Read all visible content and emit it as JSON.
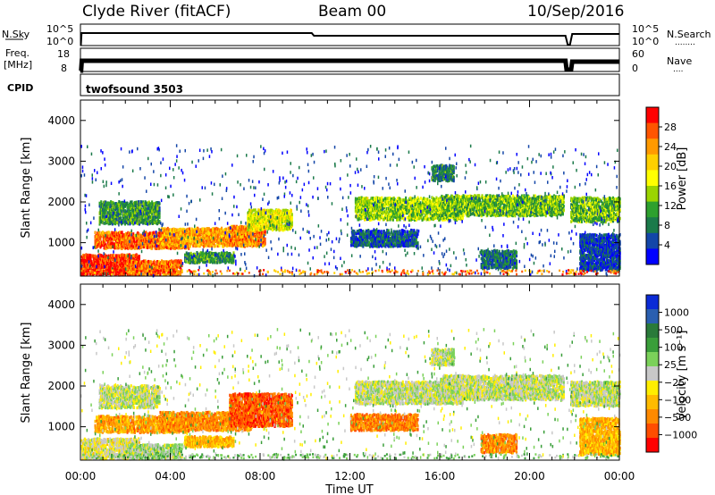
{
  "header": {
    "station": "Clyde River (fitACF)",
    "beam": "Beam 00",
    "date": "10/Sep/2016"
  },
  "nsky_panel": {
    "left_label": "N.Sky",
    "left_ticks": [
      "10^5",
      "10^0"
    ],
    "right_ticks": [
      "10^5",
      "10^0"
    ],
    "right_label": "N.Search",
    "right_dots": "........"
  },
  "freq_panel": {
    "left_label_1": "Freq.",
    "left_label_2": "[MHz]",
    "left_ticks": [
      "18",
      "8"
    ],
    "right_ticks": [
      "60",
      "0"
    ],
    "right_label": "Nave",
    "right_dots": "...."
  },
  "cpid_panel": {
    "label": "CPID",
    "value": "twofsound 3503"
  },
  "chart_data": [
    {
      "type": "heatmap",
      "name": "power",
      "ylabel": "Slant Range [km]",
      "xlabel": "",
      "ylim": [
        180,
        4500
      ],
      "yticks": [
        1000,
        2000,
        3000,
        4000
      ],
      "xlim": [
        0,
        24
      ],
      "colorbar": {
        "label": "Power [dB]",
        "ticks": [
          "28",
          "24",
          "20",
          "16",
          "12",
          "8",
          "4"
        ],
        "colors": [
          "#ff0000",
          "#ff5500",
          "#ff9a00",
          "#ffd000",
          "#ffff00",
          "#9bd400",
          "#2ea02e",
          "#1b7a4a",
          "#1346a8",
          "#0000ff"
        ]
      },
      "regions": [
        {
          "t": [
            0.0,
            2.6
          ],
          "r": [
            200,
            700
          ],
          "level": 0.95
        },
        {
          "t": [
            0.6,
            4.8
          ],
          "r": [
            850,
            1250
          ],
          "level": 0.85
        },
        {
          "t": [
            2.0,
            4.5
          ],
          "r": [
            200,
            550
          ],
          "level": 0.85
        },
        {
          "t": [
            3.5,
            7.6
          ],
          "r": [
            900,
            1350
          ],
          "level": 0.75
        },
        {
          "t": [
            6.6,
            8.2
          ],
          "r": [
            900,
            1400
          ],
          "level": 0.8
        },
        {
          "t": [
            7.4,
            9.4
          ],
          "r": [
            1300,
            1800
          ],
          "level": 0.55
        },
        {
          "t": [
            0.8,
            3.5
          ],
          "r": [
            1450,
            2000
          ],
          "level": 0.3
        },
        {
          "t": [
            4.6,
            6.8
          ],
          "r": [
            500,
            750
          ],
          "level": 0.3
        },
        {
          "t": [
            12.2,
            17.0
          ],
          "r": [
            1550,
            2100
          ],
          "level": 0.45
        },
        {
          "t": [
            16.0,
            21.5
          ],
          "r": [
            1650,
            2150
          ],
          "level": 0.4
        },
        {
          "t": [
            12.0,
            15.0
          ],
          "r": [
            900,
            1300
          ],
          "level": 0.15
        },
        {
          "t": [
            15.6,
            16.6
          ],
          "r": [
            2500,
            2900
          ],
          "level": 0.25
        },
        {
          "t": [
            17.8,
            19.4
          ],
          "r": [
            350,
            800
          ],
          "level": 0.2
        },
        {
          "t": [
            21.8,
            24.0
          ],
          "r": [
            1500,
            2100
          ],
          "level": 0.4
        },
        {
          "t": [
            22.2,
            24.0
          ],
          "r": [
            300,
            1200
          ],
          "level": 0.1
        }
      ]
    },
    {
      "type": "heatmap",
      "name": "velocity",
      "ylabel": "Slant Range [km]",
      "xlabel": "Time UT",
      "ylim": [
        180,
        4500
      ],
      "yticks": [
        1000,
        2000,
        3000,
        4000
      ],
      "xlim": [
        0,
        24
      ],
      "xticks": [
        "00:00",
        "04:00",
        "08:00",
        "12:00",
        "16:00",
        "20:00",
        "00:00"
      ],
      "colorbar": {
        "label": "Velocity [m s⁻¹]",
        "ticks": [
          "1000",
          "500",
          "100",
          "25",
          "−25",
          "−100",
          "−500",
          "−1000"
        ],
        "colors": [
          "#0b2bd6",
          "#2a5fb0",
          "#2a7a3a",
          "#3a9e3a",
          "#7bd15a",
          "#c8c8c8",
          "#ffee00",
          "#ffbb00",
          "#ff8a00",
          "#ff4d00",
          "#ff0000"
        ]
      },
      "regions": [
        {
          "t": [
            0.0,
            2.6
          ],
          "r": [
            200,
            700
          ],
          "v": 0.55
        },
        {
          "t": [
            0.6,
            4.8
          ],
          "r": [
            850,
            1250
          ],
          "v": 0.75
        },
        {
          "t": [
            2.0,
            4.5
          ],
          "r": [
            200,
            550
          ],
          "v": 0.45
        },
        {
          "t": [
            3.5,
            7.6
          ],
          "r": [
            900,
            1350
          ],
          "v": 0.8
        },
        {
          "t": [
            6.6,
            9.4
          ],
          "r": [
            1000,
            1800
          ],
          "v": 0.88
        },
        {
          "t": [
            0.8,
            3.5
          ],
          "r": [
            1450,
            2000
          ],
          "v": 0.5
        },
        {
          "t": [
            4.6,
            6.8
          ],
          "r": [
            500,
            750
          ],
          "v": 0.7
        },
        {
          "t": [
            12.2,
            17.0
          ],
          "r": [
            1550,
            2100
          ],
          "v": 0.5
        },
        {
          "t": [
            16.0,
            21.5
          ],
          "r": [
            1650,
            2250
          ],
          "v": 0.5
        },
        {
          "t": [
            12.0,
            15.0
          ],
          "r": [
            900,
            1300
          ],
          "v": 0.82
        },
        {
          "t": [
            15.6,
            16.6
          ],
          "r": [
            2500,
            2900
          ],
          "v": 0.5
        },
        {
          "t": [
            17.8,
            19.4
          ],
          "r": [
            350,
            800
          ],
          "v": 0.8
        },
        {
          "t": [
            21.8,
            24.0
          ],
          "r": [
            1500,
            2100
          ],
          "v": 0.5
        },
        {
          "t": [
            22.2,
            24.0
          ],
          "r": [
            300,
            1200
          ],
          "v": 0.72
        }
      ]
    }
  ]
}
